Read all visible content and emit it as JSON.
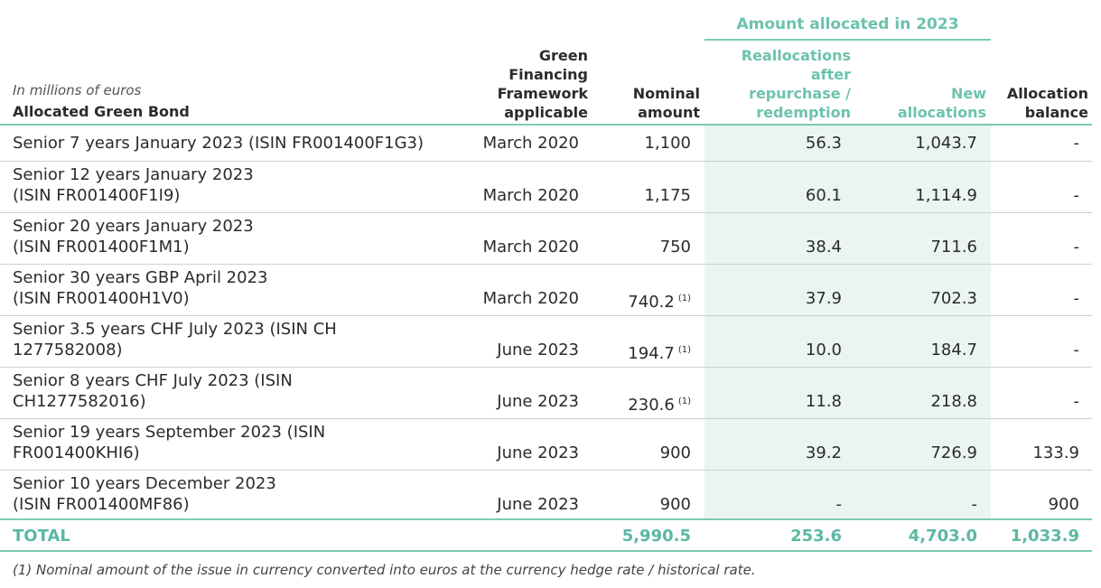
{
  "header": {
    "super_heading": "Amount allocated in 2023",
    "units_note": "In millions of euros",
    "col_bond": "Allocated Green Bond",
    "col_framework": [
      "Green",
      "Financing",
      "Framework",
      "applicable"
    ],
    "col_nominal": [
      "Nominal",
      "amount"
    ],
    "col_realloc": [
      "Reallocations",
      "after",
      "repurchase /",
      "redemption"
    ],
    "col_new": [
      "New",
      "allocations"
    ],
    "col_balance": [
      "Allocation",
      "balance"
    ]
  },
  "rows": [
    {
      "name": [
        "Senior 7 years January 2023 (ISIN FR001400F1G3)"
      ],
      "framework": "March 2020",
      "nominal": "1,100",
      "footnote": "",
      "realloc": "56.3",
      "new": "1,043.7",
      "balance": "-"
    },
    {
      "name": [
        "Senior 12 years January 2023",
        "(ISIN FR001400F1I9)"
      ],
      "framework": "March 2020",
      "nominal": "1,175",
      "footnote": "",
      "realloc": "60.1",
      "new": "1,114.9",
      "balance": "-"
    },
    {
      "name": [
        "Senior 20 years January 2023",
        "(ISIN FR001400F1M1)"
      ],
      "framework": "March 2020",
      "nominal": "750",
      "footnote": "",
      "realloc": "38.4",
      "new": "711.6",
      "balance": "-"
    },
    {
      "name": [
        "Senior 30 years GBP April 2023",
        "(ISIN FR001400H1V0)"
      ],
      "framework": "March 2020",
      "nominal": "740.2",
      "footnote": "(1)",
      "realloc": "37.9",
      "new": "702.3",
      "balance": "-"
    },
    {
      "name": [
        "Senior 3.5 years CHF July 2023 (ISIN CH",
        "1277582008)"
      ],
      "framework": "June 2023",
      "nominal": "194.7",
      "footnote": "(1)",
      "realloc": "10.0",
      "new": "184.7",
      "balance": "-"
    },
    {
      "name": [
        "Senior 8 years CHF July 2023 (ISIN",
        "CH1277582016)"
      ],
      "framework": "June 2023",
      "nominal": "230.6",
      "footnote": "(1)",
      "realloc": "11.8",
      "new": "218.8",
      "balance": "-"
    },
    {
      "name": [
        "Senior 19 years September 2023 (ISIN",
        "FR001400KHI6)"
      ],
      "framework": "June 2023",
      "nominal": "900",
      "footnote": "",
      "realloc": "39.2",
      "new": "726.9",
      "balance": "133.9"
    },
    {
      "name": [
        "Senior 10 years December 2023",
        "(ISIN FR001400MF86)"
      ],
      "framework": "June 2023",
      "nominal": "900",
      "footnote": "",
      "realloc": "-",
      "new": "-",
      "balance": "900"
    }
  ],
  "total": {
    "label": "TOTAL",
    "nominal": "5,990.5",
    "realloc": "253.6",
    "new": "4,703.0",
    "balance": "1,033.9"
  },
  "footnote": "(1)   Nominal amount of the issue in currency converted into euros at the currency hedge rate / historical rate.",
  "colors": {
    "accent": "#6cc2ae",
    "band": "#eaf4f1"
  }
}
